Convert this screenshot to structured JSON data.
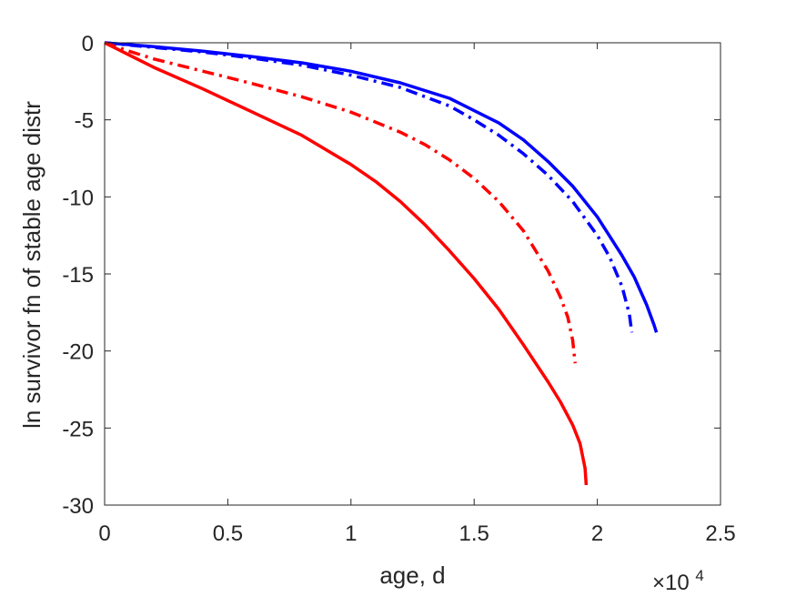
{
  "chart_data": {
    "type": "line",
    "xlabel": "age, d",
    "ylabel": "ln survivor fn of stable age distr",
    "x_exponent_label": {
      "base": "×10",
      "exponent": "4"
    },
    "xlim": [
      0,
      25000
    ],
    "ylim": [
      -30,
      0
    ],
    "x_ticks": [
      0,
      5000,
      10000,
      15000,
      20000,
      25000
    ],
    "x_tick_labels": [
      "0",
      "0.5",
      "1",
      "1.5",
      "2",
      "2.5"
    ],
    "y_ticks": [
      0,
      -5,
      -10,
      -15,
      -20,
      -25,
      -30
    ],
    "y_tick_labels": [
      "0",
      "-5",
      "-10",
      "-15",
      "-20",
      "-25",
      "-30"
    ],
    "grid": false,
    "box": true,
    "series": [
      {
        "color": "#0000ff",
        "style": "solid",
        "x": [
          0,
          2000,
          4000,
          6000,
          8000,
          10000,
          12000,
          14000,
          16000,
          17000,
          18000,
          19000,
          20000,
          21000,
          21500,
          22000,
          22300,
          22400
        ],
        "y": [
          0,
          -0.25,
          -0.55,
          -0.9,
          -1.3,
          -1.85,
          -2.6,
          -3.6,
          -5.2,
          -6.3,
          -7.7,
          -9.3,
          -11.3,
          -13.8,
          -15.2,
          -17.0,
          -18.3,
          -18.8
        ]
      },
      {
        "color": "#0000ff",
        "style": "dashdot",
        "x": [
          0,
          2000,
          4000,
          6000,
          8000,
          10000,
          12000,
          14000,
          15000,
          16000,
          17000,
          18000,
          19000,
          20000,
          20500,
          21000,
          21300,
          21400
        ],
        "y": [
          0,
          -0.3,
          -0.6,
          -1.0,
          -1.45,
          -2.1,
          -2.9,
          -4.1,
          -5.0,
          -6.0,
          -7.2,
          -8.6,
          -10.3,
          -12.5,
          -13.9,
          -15.8,
          -17.6,
          -18.8
        ]
      },
      {
        "color": "#ff0000",
        "style": "dashdot",
        "x": [
          0,
          1000,
          2000,
          4000,
          6000,
          8000,
          10000,
          12000,
          13000,
          14000,
          15000,
          16000,
          17000,
          18000,
          18500,
          18800,
          19000,
          19100
        ],
        "y": [
          0,
          -0.55,
          -1.05,
          -1.85,
          -2.65,
          -3.5,
          -4.5,
          -5.8,
          -6.6,
          -7.6,
          -8.8,
          -10.3,
          -12.2,
          -14.8,
          -16.5,
          -17.8,
          -19.3,
          -20.8
        ]
      },
      {
        "color": "#ff0000",
        "style": "solid",
        "x": [
          0,
          1000,
          2000,
          4000,
          6000,
          8000,
          10000,
          11000,
          12000,
          13000,
          14000,
          15000,
          16000,
          17000,
          18000,
          18500,
          19000,
          19300,
          19500,
          19550
        ],
        "y": [
          0,
          -0.8,
          -1.6,
          -3.0,
          -4.5,
          -6.0,
          -7.9,
          -9.0,
          -10.3,
          -11.8,
          -13.5,
          -15.3,
          -17.3,
          -19.6,
          -22.0,
          -23.3,
          -24.8,
          -26.0,
          -27.6,
          -28.7
        ]
      }
    ]
  }
}
